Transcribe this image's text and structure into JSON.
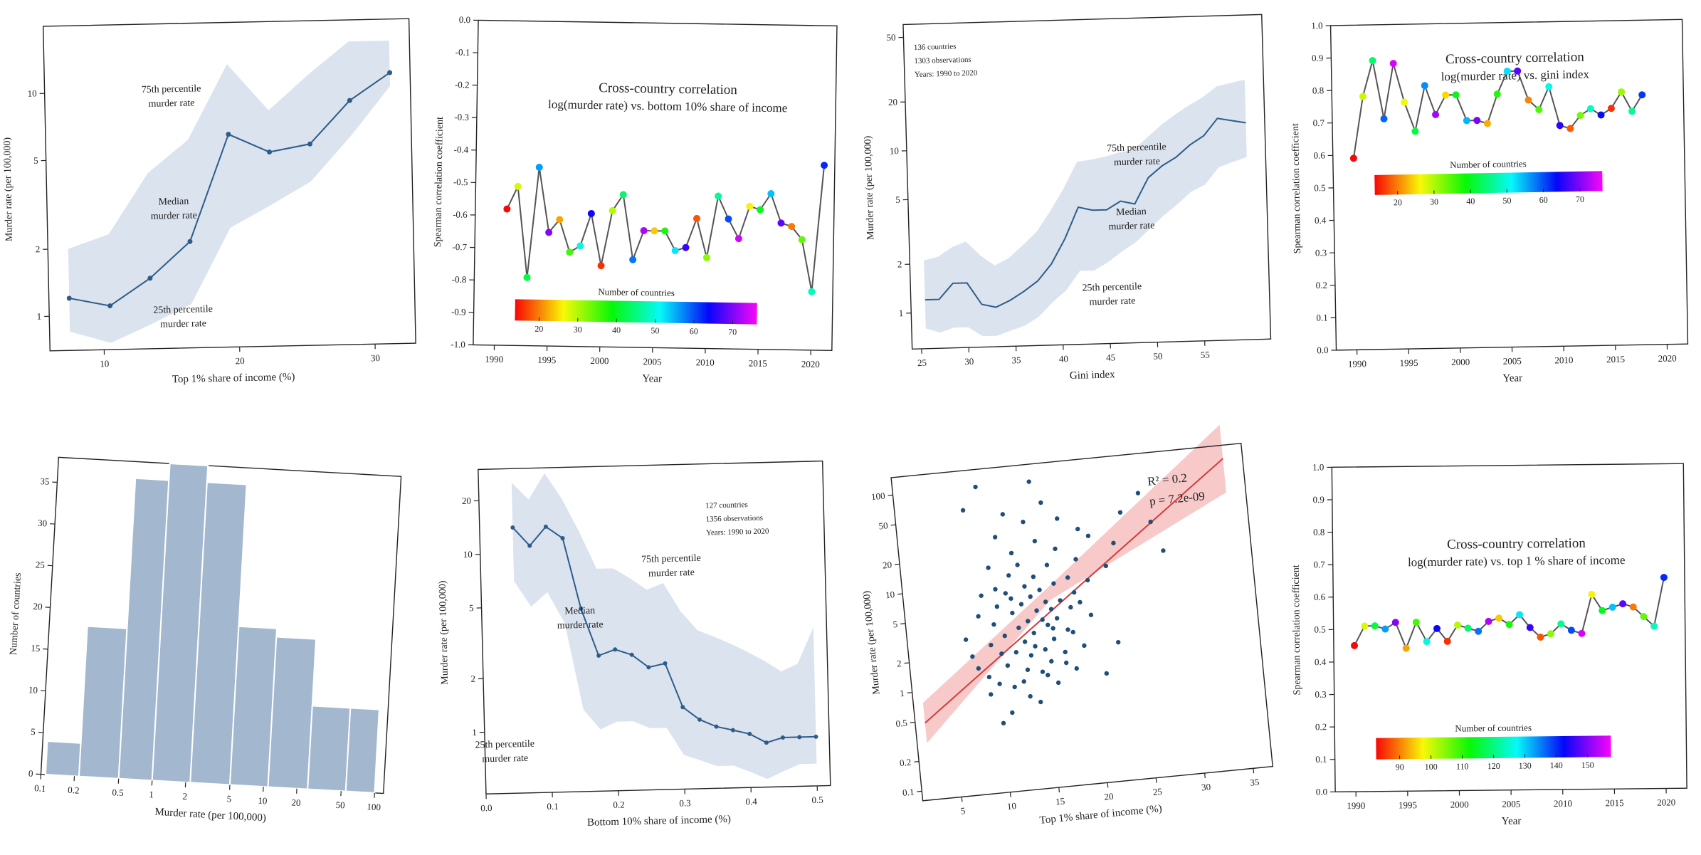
{
  "charts": [
    {
      "type": "line",
      "xlabel": "Top 1% share of income (%)",
      "ylabel": "Murder rate (per 100,000)",
      "xticks": [
        "10",
        "20",
        "30"
      ],
      "yticks": [
        "1",
        "2",
        "5",
        "10"
      ],
      "x": [
        7.5,
        10.5,
        13.5,
        16.5,
        19.5,
        22.5,
        25.5,
        28.5,
        31.5
      ],
      "median": [
        1.2,
        1.1,
        1.45,
        2.1,
        6.3,
        5.2,
        5.6,
        8.7,
        11.5
      ],
      "p25": [
        0.85,
        0.75,
        0.9,
        1.1,
        2.4,
        3.0,
        3.8,
        6.0,
        10.0
      ],
      "p75": [
        2.0,
        2.3,
        4.3,
        6.0,
        13.0,
        8.0,
        11.5,
        16.0,
        16.0
      ],
      "annotations": [
        "75th percentile",
        "murder rate",
        "Median",
        "murder rate",
        "25th percentile",
        "murder rate"
      ],
      "colors": {
        "line": "#2e5c8a",
        "band": "#dbe3ef"
      }
    },
    {
      "type": "line",
      "title": [
        "Cross-country correlation",
        "log(murder rate) vs. bottom 10% share of income"
      ],
      "xlabel": "Year",
      "ylabel": "Spearman correlation coefficient",
      "xticks": [
        "1990",
        "1995",
        "2000",
        "2005",
        "2010",
        "2015",
        "2020"
      ],
      "yticks": [
        "0.0",
        "-0.1",
        "-0.2",
        "-0.3",
        "-0.4",
        "-0.5",
        "-0.6",
        "-0.7",
        "-0.8",
        "-0.9",
        "-1.0"
      ],
      "ylim": [
        -1.0,
        0.0
      ],
      "x": [
        1991,
        1992,
        1993,
        1994,
        1995,
        1996,
        1997,
        1998,
        1999,
        2000,
        2001,
        2002,
        2003,
        2004,
        2005,
        2006,
        2007,
        2008,
        2009,
        2010,
        2011,
        2012,
        2013,
        2014,
        2015,
        2016,
        2017,
        2018,
        2019,
        2020,
        2021
      ],
      "values": [
        -0.58,
        -0.51,
        -0.79,
        -0.45,
        -0.65,
        -0.61,
        -0.71,
        -0.69,
        -0.59,
        -0.75,
        -0.58,
        -0.53,
        -0.73,
        -0.64,
        -0.64,
        -0.64,
        -0.7,
        -0.69,
        -0.6,
        -0.72,
        -0.53,
        -0.6,
        -0.66,
        -0.56,
        -0.57,
        -0.52,
        -0.61,
        -0.62,
        -0.66,
        -0.82,
        -0.43
      ],
      "colorbar": {
        "label": "Number of countries",
        "ticks": [
          "20",
          "30",
          "40",
          "50",
          "60",
          "70"
        ]
      },
      "colors": {
        "line": "#555555"
      }
    },
    {
      "type": "line",
      "notes": [
        "136 countries",
        "1303 observations",
        "Years: 1990 to 2020"
      ],
      "xlabel": "Gini index",
      "ylabel": "Murder rate (per 100,000)",
      "xticks": [
        "25",
        "30",
        "35",
        "40",
        "45",
        "50",
        "55"
      ],
      "yticks": [
        "1",
        "2",
        "5",
        "10",
        "20",
        "50"
      ],
      "x": [
        25.5,
        27,
        28.5,
        30,
        31.5,
        33,
        34.5,
        36,
        37.5,
        39,
        40.5,
        42,
        43.5,
        45,
        46.5,
        48,
        49.5,
        51,
        52.5,
        54,
        55.5,
        57,
        58.5,
        60
      ],
      "median": [
        1.2,
        1.2,
        1.5,
        1.5,
        1.1,
        1.05,
        1.15,
        1.3,
        1.5,
        1.9,
        2.7,
        4.2,
        4.0,
        4.0,
        4.5,
        4.3,
        6.2,
        7.3,
        8.2,
        9.7,
        11.0,
        14.0,
        13.5,
        13.0
      ],
      "p25": [
        0.8,
        0.75,
        0.8,
        0.8,
        0.7,
        0.7,
        0.75,
        0.8,
        0.9,
        1.1,
        1.3,
        1.7,
        1.7,
        1.9,
        2.2,
        2.5,
        3.0,
        3.6,
        4.2,
        5.0,
        5.5,
        7.0,
        7.5,
        8.0
      ],
      "p75": [
        2.1,
        2.2,
        2.5,
        2.7,
        2.2,
        1.9,
        2.1,
        2.5,
        3.0,
        4.0,
        5.5,
        8.0,
        8.2,
        8.5,
        9.0,
        9.2,
        11.0,
        13.0,
        15.0,
        17.0,
        19.0,
        22.0,
        23.0,
        24.0
      ],
      "annotations": [
        "75th percentile",
        "murder rate",
        "Median",
        "murder rate",
        "25th percentile",
        "murder rate"
      ],
      "colors": {
        "line": "#2e5c8a",
        "band": "#dbe3ef"
      }
    },
    {
      "type": "line",
      "title": [
        "Cross-country correlation",
        "log(murder rate) vs. gini index"
      ],
      "xlabel": "Year",
      "ylabel": "Spearman correlation coefficient",
      "xticks": [
        "1990",
        "1995",
        "2000",
        "2005",
        "2010",
        "2015",
        "2020"
      ],
      "yticks": [
        "0.0",
        "0.1",
        "0.2",
        "0.3",
        "0.4",
        "0.5",
        "0.6",
        "0.7",
        "0.8",
        "0.9",
        "1.0"
      ],
      "ylim": [
        0.0,
        1.0
      ],
      "x": [
        1990,
        1991,
        1992,
        1993,
        1994,
        1995,
        1996,
        1997,
        1998,
        1999,
        2000,
        2001,
        2002,
        2003,
        2004,
        2005,
        2006,
        2007,
        2008,
        2009,
        2010,
        2011,
        2012,
        2013,
        2014,
        2015,
        2016,
        2017,
        2018
      ],
      "values": [
        0.59,
        0.78,
        0.89,
        0.71,
        0.88,
        0.76,
        0.67,
        0.81,
        0.72,
        0.78,
        0.78,
        0.7,
        0.7,
        0.69,
        0.78,
        0.85,
        0.85,
        0.76,
        0.73,
        0.8,
        0.68,
        0.67,
        0.71,
        0.73,
        0.71,
        0.73,
        0.78,
        0.72,
        0.77
      ],
      "colorbar": {
        "label": "Number of countries",
        "ticks": [
          "20",
          "30",
          "40",
          "50",
          "60",
          "70"
        ]
      },
      "colors": {
        "line": "#555555"
      }
    },
    {
      "type": "bar",
      "xlabel": "Murder rate (per 100,000)",
      "ylabel": "Number of countries",
      "xticks": [
        "0.1",
        "0.2",
        "0.5",
        "1",
        "2",
        "5",
        "10",
        "20",
        "50",
        "100"
      ],
      "yticks": [
        "0",
        "5",
        "10",
        "15",
        "20",
        "25",
        "30",
        "35"
      ],
      "ylim": [
        0,
        38
      ],
      "bin_edges": [
        0.11,
        0.22,
        0.5,
        1.0,
        2.2,
        5.0,
        11,
        25,
        55,
        100
      ],
      "values": [
        4,
        18,
        36,
        38,
        36,
        19,
        18,
        10,
        10
      ],
      "colors": {
        "bar": "#a3b7cf",
        "edge": "#ffffff"
      }
    },
    {
      "type": "line",
      "notes": [
        "127 countries",
        "1356 observations",
        "Years: 1990 to 2020"
      ],
      "xlabel": "Bottom 10% share of income (%)",
      "ylabel": "Murder rate (per 100,000)",
      "xticks": [
        "0.0",
        "0.1",
        "0.2",
        "0.3",
        "0.4",
        "0.5"
      ],
      "yticks": [
        "1",
        "2",
        "5",
        "10",
        "20"
      ],
      "x": [
        0.05,
        0.075,
        0.1,
        0.125,
        0.15,
        0.175,
        0.2,
        0.225,
        0.25,
        0.275,
        0.3,
        0.325,
        0.35,
        0.375,
        0.4,
        0.425,
        0.45,
        0.475,
        0.5
      ],
      "median": [
        14,
        11,
        14,
        12,
        4.8,
        2.6,
        2.8,
        2.6,
        2.2,
        2.3,
        1.3,
        1.1,
        1.0,
        0.95,
        0.9,
        0.8,
        0.85,
        0.85,
        0.85
      ],
      "p25": [
        7,
        5,
        6,
        4,
        1.3,
        1.0,
        1.1,
        1.1,
        1.0,
        1.0,
        0.7,
        0.65,
        0.6,
        0.6,
        0.55,
        0.5,
        0.55,
        0.6,
        0.6
      ],
      "p75": [
        25,
        20,
        28,
        20,
        13,
        8,
        8,
        7,
        6,
        6.5,
        4.5,
        3.5,
        3.2,
        2.9,
        2.6,
        2.3,
        2.0,
        2.2,
        3.5
      ],
      "annotations": [
        "75th percentile",
        "murder rate",
        "Median",
        "murder rate",
        "25th percentile",
        "murder rate"
      ],
      "colors": {
        "line": "#2e5c8a",
        "band": "#dbe3ef"
      }
    },
    {
      "type": "scatter",
      "annotations": [
        "R² = 0.2",
        "p = 7.2e-09"
      ],
      "xlabel": "Top 1% share of income (%)",
      "ylabel": "Murder rate (per 100,000)",
      "xticks": [
        "5",
        "10",
        "15",
        "20",
        "25",
        "30",
        "35"
      ],
      "yticks": [
        "0.1",
        "0.2",
        "0.5",
        "1",
        "2",
        "5",
        "10",
        "20",
        "50",
        "100"
      ],
      "fit": {
        "x": [
          2,
          35
        ],
        "y": [
          0.48,
          110
        ]
      },
      "points": [
        [
          7,
          3
        ],
        [
          7.5,
          2
        ],
        [
          8,
          1.5
        ],
        [
          8,
          60
        ],
        [
          8.5,
          5
        ],
        [
          9,
          1.2
        ],
        [
          9,
          8
        ],
        [
          9.5,
          2.5
        ],
        [
          9.5,
          100
        ],
        [
          10,
          0.4
        ],
        [
          10,
          1
        ],
        [
          10,
          4
        ],
        [
          10,
          15
        ],
        [
          10.5,
          2
        ],
        [
          10.5,
          6
        ],
        [
          11,
          1.5
        ],
        [
          11,
          3
        ],
        [
          11,
          30
        ],
        [
          11.5,
          0.9
        ],
        [
          11.5,
          8
        ],
        [
          12,
          2
        ],
        [
          12,
          5
        ],
        [
          12,
          12
        ],
        [
          12,
          50
        ],
        [
          12.5,
          1
        ],
        [
          12.5,
          3.5
        ],
        [
          12.5,
          20
        ],
        [
          13,
          0.7
        ],
        [
          13,
          2.5
        ],
        [
          13,
          6
        ],
        [
          13,
          15
        ],
        [
          13.5,
          1.8
        ],
        [
          13.5,
          4
        ],
        [
          13.5,
          9
        ],
        [
          14,
          0.6
        ],
        [
          14,
          3
        ],
        [
          14,
          7
        ],
        [
          14,
          40
        ],
        [
          14.5,
          1.2
        ],
        [
          14.5,
          5
        ],
        [
          14.5,
          11
        ],
        [
          15,
          2
        ],
        [
          15,
          4
        ],
        [
          15,
          8
        ],
        [
          15,
          25
        ],
        [
          15,
          100
        ],
        [
          15.5,
          1.5
        ],
        [
          15.5,
          3.5
        ],
        [
          15.5,
          6
        ],
        [
          16,
          0.9
        ],
        [
          16,
          2.5
        ],
        [
          16,
          5
        ],
        [
          16,
          14
        ],
        [
          16,
          60
        ],
        [
          16.5,
          4
        ],
        [
          16.5,
          9
        ],
        [
          17,
          1.8
        ],
        [
          17,
          6
        ],
        [
          17,
          20
        ],
        [
          17.5,
          3
        ],
        [
          17.5,
          40
        ],
        [
          18,
          1.2
        ],
        [
          18,
          5
        ],
        [
          18,
          10
        ],
        [
          18.5,
          7
        ],
        [
          19,
          2
        ],
        [
          19,
          15
        ],
        [
          19.5,
          30
        ],
        [
          20,
          4
        ],
        [
          20,
          9
        ],
        [
          20.5,
          25
        ],
        [
          21,
          1
        ],
        [
          22,
          12
        ],
        [
          22.5,
          2
        ],
        [
          23,
          20
        ],
        [
          24,
          40
        ],
        [
          26,
          60
        ],
        [
          27,
          30
        ],
        [
          28,
          15
        ],
        [
          9,
          0.8
        ],
        [
          11,
          0.5
        ],
        [
          13,
          1.3
        ],
        [
          15,
          1.1
        ],
        [
          17,
          1.4
        ],
        [
          12,
          7
        ],
        [
          14,
          2.2
        ],
        [
          16,
          3.2
        ],
        [
          18,
          2.8
        ],
        [
          10.5,
          9
        ],
        [
          19,
          5.5
        ]
      ],
      "colors": {
        "point": "#1f4e79",
        "fit": "#d43a3a",
        "band": "#f7c9c9"
      }
    },
    {
      "type": "line",
      "title": [
        "Cross-country correlation",
        "log(murder rate) vs. top 1 % share of income"
      ],
      "xlabel": "Year",
      "ylabel": "Spearman correlation coefficient",
      "xticks": [
        "1990",
        "1995",
        "2000",
        "2005",
        "2010",
        "2015",
        "2020"
      ],
      "yticks": [
        "0.0",
        "0.1",
        "0.2",
        "0.3",
        "0.4",
        "0.5",
        "0.6",
        "0.7",
        "0.8",
        "0.9",
        "1.0"
      ],
      "ylim": [
        0.0,
        1.0
      ],
      "x": [
        1990,
        1991,
        1992,
        1993,
        1994,
        1995,
        1996,
        1997,
        1998,
        1999,
        2000,
        2001,
        2002,
        2003,
        2004,
        2005,
        2006,
        2007,
        2008,
        2009,
        2010,
        2011,
        2012,
        2013,
        2014,
        2015,
        2016,
        2017,
        2018,
        2019,
        2020
      ],
      "values": [
        0.45,
        0.51,
        0.51,
        0.5,
        0.52,
        0.44,
        0.52,
        0.46,
        0.5,
        0.46,
        0.51,
        0.5,
        0.49,
        0.52,
        0.53,
        0.51,
        0.54,
        0.5,
        0.47,
        0.48,
        0.51,
        0.49,
        0.48,
        0.6,
        0.55,
        0.56,
        0.57,
        0.56,
        0.53,
        0.5,
        0.65
      ],
      "colorbar": {
        "label": "Number of countries",
        "ticks": [
          "90",
          "100",
          "110",
          "120",
          "130",
          "140",
          "150"
        ]
      },
      "colors": {
        "line": "#555555"
      }
    }
  ]
}
